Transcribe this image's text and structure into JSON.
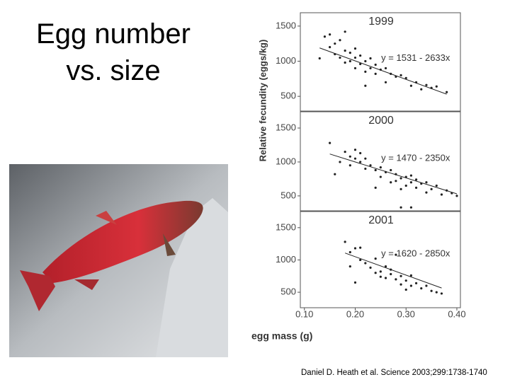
{
  "slide": {
    "title": "Egg number vs. size",
    "citation": "Daniel D. Heath et al. Science 2003;299:1738-1740"
  },
  "chart_data": [
    {
      "type": "scatter",
      "title": "1999",
      "color": "#222222",
      "trend": {
        "label": "y = 1531 - 2633x",
        "intercept": 1531,
        "slope": -2633
      },
      "xlim": [
        0.092,
        0.407
      ],
      "ylim": [
        290,
        1690
      ],
      "yticks": [
        500,
        1000,
        1500
      ],
      "x": [
        0.13,
        0.14,
        0.15,
        0.15,
        0.16,
        0.16,
        0.17,
        0.17,
        0.18,
        0.18,
        0.19,
        0.19,
        0.2,
        0.2,
        0.2,
        0.21,
        0.21,
        0.22,
        0.22,
        0.23,
        0.23,
        0.24,
        0.24,
        0.25,
        0.26,
        0.26,
        0.27,
        0.28,
        0.29,
        0.3,
        0.31,
        0.32,
        0.33,
        0.34,
        0.35,
        0.36,
        0.38,
        0.22,
        0.18
      ],
      "y": [
        1040,
        1350,
        1380,
        1200,
        1100,
        1250,
        1300,
        1050,
        1150,
        980,
        1120,
        1000,
        1050,
        900,
        1180,
        960,
        1080,
        850,
        1000,
        900,
        1040,
        950,
        820,
        880,
        700,
        900,
        820,
        780,
        800,
        760,
        650,
        700,
        600,
        660,
        620,
        640,
        560,
        650,
        1420
      ]
    },
    {
      "type": "scatter",
      "title": "2000",
      "color": "#222222",
      "ylabel": "Relative fecundity (eggs/kg)",
      "trend": {
        "label": "y = 1470 - 2350x",
        "intercept": 1470,
        "slope": -2350
      },
      "xlim": [
        0.092,
        0.407
      ],
      "ylim": [
        280,
        1740
      ],
      "yticks": [
        500,
        1000,
        1500
      ],
      "x": [
        0.15,
        0.16,
        0.17,
        0.18,
        0.19,
        0.19,
        0.2,
        0.2,
        0.21,
        0.21,
        0.22,
        0.22,
        0.23,
        0.24,
        0.25,
        0.25,
        0.26,
        0.27,
        0.27,
        0.28,
        0.28,
        0.29,
        0.29,
        0.3,
        0.3,
        0.31,
        0.31,
        0.32,
        0.32,
        0.33,
        0.34,
        0.34,
        0.35,
        0.36,
        0.37,
        0.38,
        0.39,
        0.4,
        0.29,
        0.31,
        0.24
      ],
      "y": [
        1280,
        820,
        1000,
        1150,
        1080,
        950,
        1180,
        1050,
        1000,
        1130,
        900,
        1050,
        950,
        880,
        920,
        780,
        850,
        700,
        880,
        820,
        720,
        760,
        600,
        780,
        650,
        700,
        800,
        620,
        740,
        680,
        550,
        700,
        600,
        650,
        520,
        580,
        540,
        500,
        330,
        330,
        620
      ]
    },
    {
      "type": "scatter",
      "title": "2001",
      "color": "#222222",
      "xlabel": "egg mass (g)",
      "trend": {
        "label": "y = 1620 - 2850x",
        "intercept": 1620,
        "slope": -2850
      },
      "xlim": [
        0.092,
        0.407
      ],
      "ylim": [
        260,
        1750
      ],
      "yticks": [
        500,
        1000,
        1500
      ],
      "xticks": [
        {
          "value": 0.1,
          "label": "0.10"
        },
        {
          "value": 0.2,
          "label": "0.20"
        },
        {
          "value": 0.3,
          "label": "0.30"
        },
        {
          "value": 0.4,
          "label": "0.40"
        }
      ],
      "x": [
        0.18,
        0.19,
        0.19,
        0.2,
        0.2,
        0.21,
        0.21,
        0.22,
        0.23,
        0.24,
        0.24,
        0.25,
        0.26,
        0.26,
        0.27,
        0.27,
        0.28,
        0.28,
        0.29,
        0.29,
        0.3,
        0.31,
        0.31,
        0.32,
        0.33,
        0.34,
        0.35,
        0.36,
        0.37,
        0.25,
        0.3
      ],
      "y": [
        1280,
        1120,
        900,
        1180,
        650,
        1000,
        1190,
        950,
        880,
        800,
        1020,
        820,
        900,
        720,
        780,
        850,
        700,
        1080,
        750,
        620,
        680,
        760,
        600,
        640,
        560,
        600,
        520,
        500,
        480,
        740,
        540
      ]
    }
  ]
}
